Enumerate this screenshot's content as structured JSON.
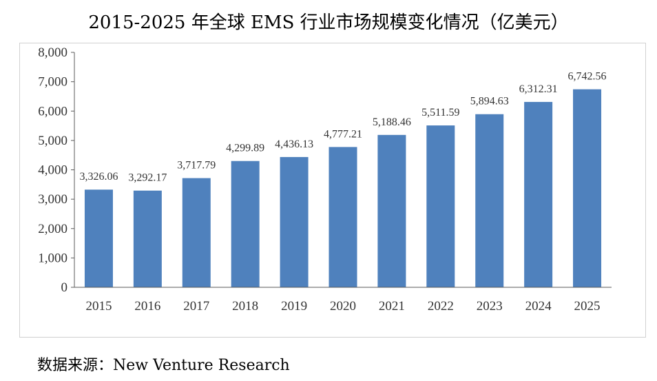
{
  "title": "2015-2025 年全球 EMS 行业市场规模变化情况（亿美元）",
  "source": "数据来源：New Venture Research",
  "colors": {
    "bar": "#4F81BD",
    "axis": "#595959"
  },
  "chart_data": {
    "type": "bar",
    "title": "2015-2025 年全球 EMS 行业市场规模变化情况（亿美元）",
    "xlabel": "",
    "ylabel": "",
    "categories": [
      "2015",
      "2016",
      "2017",
      "2018",
      "2019",
      "2020",
      "2021",
      "2022",
      "2023",
      "2024",
      "2025"
    ],
    "values": [
      3326.06,
      3292.17,
      3717.79,
      4299.89,
      4436.13,
      4777.21,
      5188.46,
      5511.59,
      5894.63,
      6312.31,
      6742.56
    ],
    "value_labels": [
      "3,326.06",
      "3,292.17",
      "3,717.79",
      "4,299.89",
      "4,436.13",
      "4,777.21",
      "5,188.46",
      "5,511.59",
      "5,894.63",
      "6,312.31",
      "6,742.56"
    ],
    "yticks": [
      0,
      1000,
      2000,
      3000,
      4000,
      5000,
      6000,
      7000,
      8000
    ],
    "ytick_labels": [
      "0",
      "1,000",
      "2,000",
      "3,000",
      "4,000",
      "5,000",
      "6,000",
      "7,000",
      "8,000"
    ],
    "ylim": [
      0,
      8000
    ],
    "grid": false,
    "legend": "none"
  }
}
